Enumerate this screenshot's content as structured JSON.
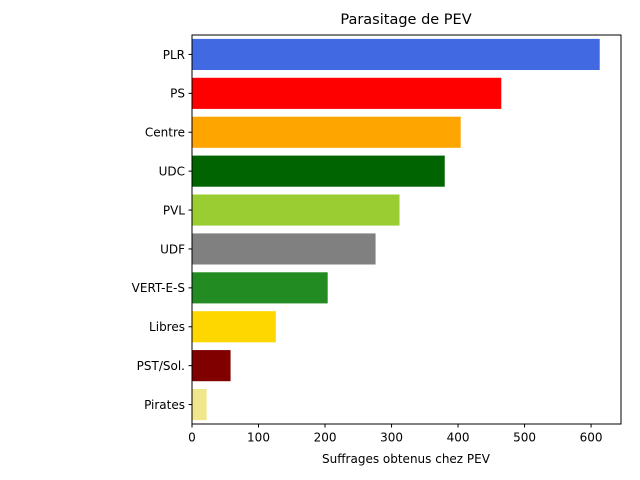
{
  "chart_data": {
    "type": "bar",
    "orientation": "horizontal",
    "title": "Parasitage de PEV",
    "xlabel": "Suffrages obtenus chez PEV",
    "ylabel": "",
    "xlim": [
      0,
      645
    ],
    "xticks": [
      0,
      100,
      200,
      300,
      400,
      500,
      600
    ],
    "grid": false,
    "categories": [
      "PLR",
      "PS",
      "Centre",
      "UDC",
      "PVL",
      "UDF",
      "VERT-E-S",
      "Libres",
      "PST/Sol.",
      "Pirates"
    ],
    "values": [
      613,
      465,
      404,
      380,
      312,
      276,
      204,
      126,
      58,
      22
    ],
    "colors": [
      "#4169e1",
      "#ff0000",
      "#ffa500",
      "#006400",
      "#9acd32",
      "#808080",
      "#228b22",
      "#ffd700",
      "#800000",
      "#f0e68c"
    ]
  }
}
